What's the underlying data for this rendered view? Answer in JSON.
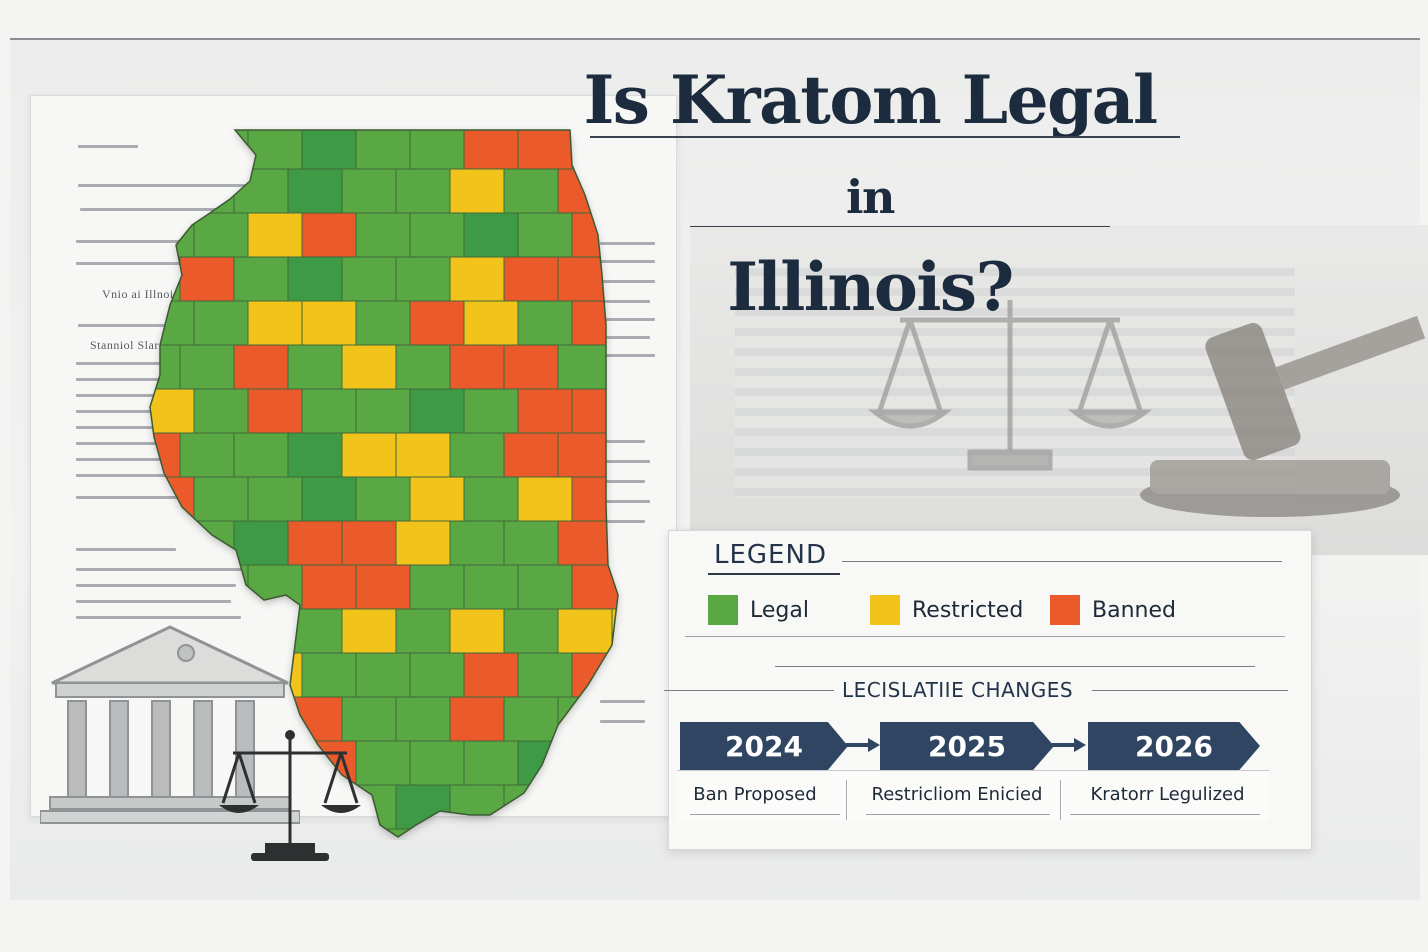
{
  "title": {
    "line1_main": "Is Kratom Legal",
    "line1_small": "in",
    "line2": "Illinois?"
  },
  "legend": {
    "title": "LEGEND",
    "items": [
      {
        "label": "Legal",
        "color": "#5aa843"
      },
      {
        "label": "Restricted",
        "color": "#f2c41b"
      },
      {
        "label": "Banned",
        "color": "#ea5a2b"
      }
    ]
  },
  "legislative_changes": {
    "title": "LECISLATIIE CHANGES",
    "timeline": [
      {
        "year": "2024",
        "event": "Ban Proposed"
      },
      {
        "year": "2025",
        "event": "Restricliom Enicied"
      },
      {
        "year": "2026",
        "event": "Kratorr Legulized"
      }
    ]
  },
  "document": {
    "caption_1": "Vnio ai Illnoi",
    "caption_2": "Stanniol Slaronth"
  },
  "map": {
    "region": "Illinois counties",
    "status_colors": {
      "legal": "#5aa843",
      "legal_dark": "#3f9a45",
      "restricted": "#f2c41b",
      "banned": "#ea5a2b"
    }
  },
  "icons": [
    "courthouse-icon",
    "scales-of-justice-icon",
    "gavel-icon"
  ]
}
